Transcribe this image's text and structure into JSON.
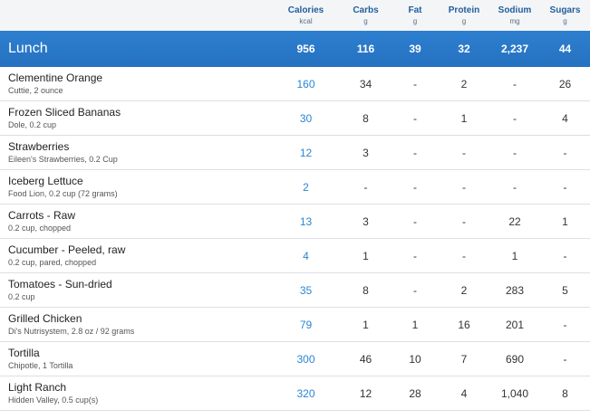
{
  "columns": [
    {
      "label": "Calories",
      "unit": "kcal"
    },
    {
      "label": "Carbs",
      "unit": "g"
    },
    {
      "label": "Fat",
      "unit": "g"
    },
    {
      "label": "Protein",
      "unit": "g"
    },
    {
      "label": "Sodium",
      "unit": "mg"
    },
    {
      "label": "Sugars",
      "unit": "g"
    }
  ],
  "meal": {
    "name": "Lunch",
    "totals": [
      "956",
      "116",
      "39",
      "32",
      "2,237",
      "44"
    ]
  },
  "colors": {
    "accent": "#2a86d4",
    "meal_bar": "#2a79c8"
  },
  "foods": [
    {
      "name": "Clementine Orange",
      "desc": "Cuttie, 2 ounce",
      "values": [
        "160",
        "34",
        "-",
        "2",
        "-",
        "26"
      ]
    },
    {
      "name": "Frozen Sliced Bananas",
      "desc": "Dole, 0.2 cup",
      "values": [
        "30",
        "8",
        "-",
        "1",
        "-",
        "4"
      ]
    },
    {
      "name": "Strawberries",
      "desc": "Eileen's Strawberries, 0.2 Cup",
      "values": [
        "12",
        "3",
        "-",
        "-",
        "-",
        "-"
      ]
    },
    {
      "name": "Iceberg Lettuce",
      "desc": "Food Lion, 0.2 cup (72 grams)",
      "values": [
        "2",
        "-",
        "-",
        "-",
        "-",
        "-"
      ]
    },
    {
      "name": "Carrots - Raw",
      "desc": "0.2 cup, chopped",
      "values": [
        "13",
        "3",
        "-",
        "-",
        "22",
        "1"
      ]
    },
    {
      "name": "Cucumber - Peeled, raw",
      "desc": "0.2 cup, pared, chopped",
      "values": [
        "4",
        "1",
        "-",
        "-",
        "1",
        "-"
      ]
    },
    {
      "name": "Tomatoes - Sun-dried",
      "desc": "0.2 cup",
      "values": [
        "35",
        "8",
        "-",
        "2",
        "283",
        "5"
      ]
    },
    {
      "name": "Grilled Chicken",
      "desc": "Di's Nutrisystem, 2.8 oz / 92 grams",
      "values": [
        "79",
        "1",
        "1",
        "16",
        "201",
        "-"
      ]
    },
    {
      "name": "Tortilla",
      "desc": "Chipotle, 1 Tortilla",
      "values": [
        "300",
        "46",
        "10",
        "7",
        "690",
        "-"
      ]
    },
    {
      "name": "Light Ranch",
      "desc": "Hidden Valley, 0.5 cup(s)",
      "values": [
        "320",
        "12",
        "28",
        "4",
        "1,040",
        "8"
      ]
    }
  ]
}
